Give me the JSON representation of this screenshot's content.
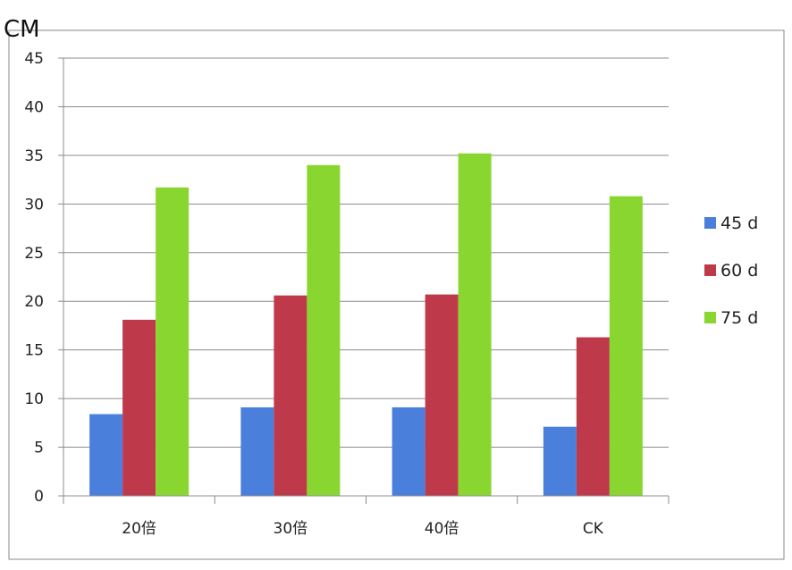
{
  "chart_data": {
    "type": "bar",
    "ylabel": "CM",
    "ylim": [
      0,
      45
    ],
    "yticks": [
      0,
      5,
      10,
      15,
      20,
      25,
      30,
      35,
      40,
      45
    ],
    "categories": [
      "20倍",
      "30倍",
      "40倍",
      "CK"
    ],
    "series": [
      {
        "name": "45 d",
        "color": "#4a7fdc",
        "values": [
          8.4,
          9.1,
          9.1,
          7.1
        ]
      },
      {
        "name": "60 d",
        "color": "#be3a4a",
        "values": [
          18.1,
          20.6,
          20.7,
          16.3
        ]
      },
      {
        "name": "75 d",
        "color": "#8ad630",
        "values": [
          31.7,
          34.0,
          35.2,
          30.8
        ]
      }
    ],
    "grid": true,
    "legend": "right"
  }
}
